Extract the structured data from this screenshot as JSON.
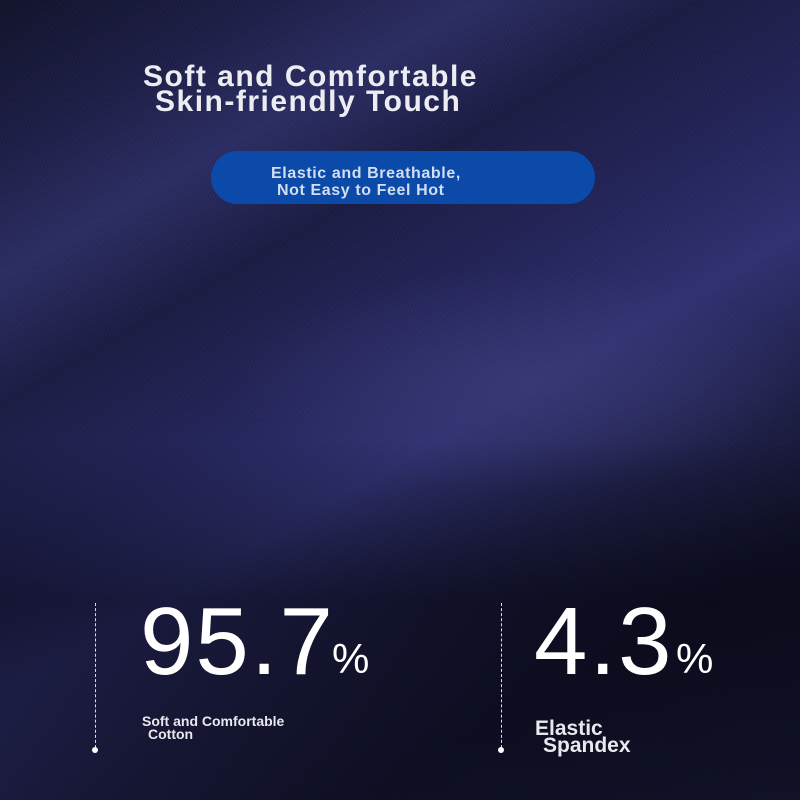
{
  "headline": {
    "line1": "Soft and Comfortable",
    "line2": "Skin-friendly Touch"
  },
  "badge": {
    "line1": "Elastic and Breathable,",
    "line2": "Not Easy to Feel Hot",
    "color": "#0b4aa8"
  },
  "stats": [
    {
      "value": "95.7",
      "unit": "%",
      "label1": "Soft and Comfortable",
      "label2": "Cotton"
    },
    {
      "value": "4.3",
      "unit": "%",
      "label1": "Elastic",
      "label2": "Spandex"
    }
  ]
}
